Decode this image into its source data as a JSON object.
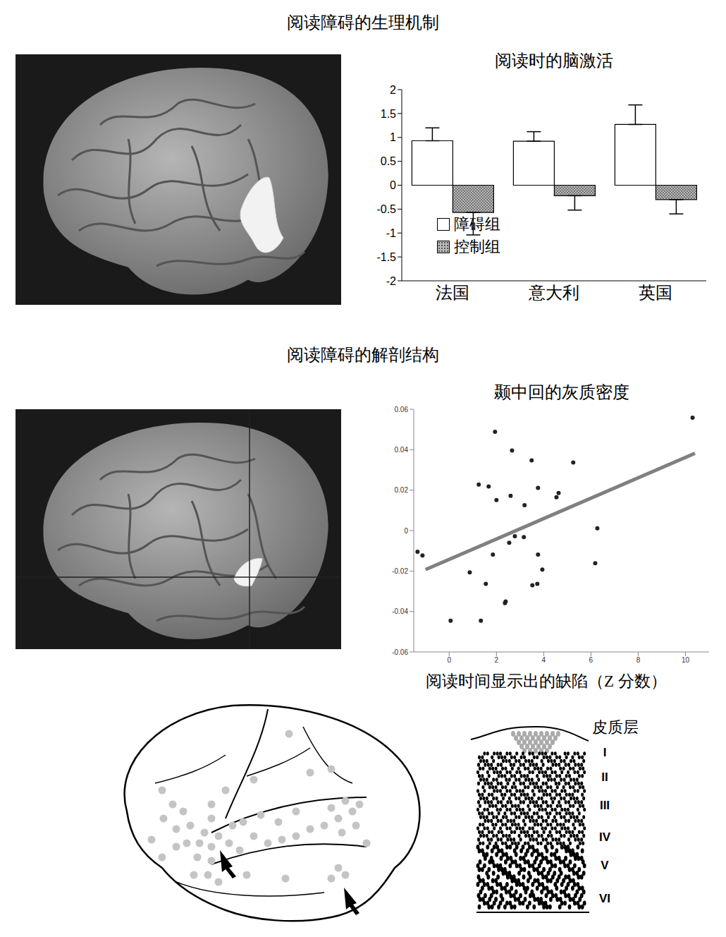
{
  "sections": [
    "阅读障碍的生理机制",
    "阅读障碍的解剖结构"
  ],
  "chart_data": [
    {
      "type": "bar",
      "title": "阅读时的脑激活",
      "categories": [
        "法国",
        "意大利",
        "英国"
      ],
      "series": [
        {
          "name": "障碍组",
          "color": "#ffffff",
          "values": [
            0.93,
            0.92,
            1.27
          ],
          "errors": [
            0.27,
            0.2,
            0.41
          ]
        },
        {
          "name": "控制组",
          "color": "#b8b8b8",
          "values": [
            -0.57,
            -0.22,
            -0.3
          ],
          "errors": [
            0.47,
            0.3,
            0.3
          ]
        }
      ],
      "ylim": [
        -2,
        2
      ],
      "yticks": [
        -2,
        -1.5,
        -1,
        -0.5,
        0,
        0.5,
        1,
        1.5,
        2
      ],
      "legend": "lower left",
      "grid": false
    },
    {
      "type": "scatter",
      "title": "颞中回的灰质密度",
      "xlabel": "阅读时间显示出的缺陷（Z 分数）",
      "x": [
        -1.34,
        -1.13,
        0.06,
        0.87,
        1.25,
        1.34,
        1.55,
        1.67,
        1.94,
        2.0,
        1.85,
        2.36,
        2.39,
        2.54,
        2.6,
        2.66,
        2.78,
        3.19,
        3.16,
        3.49,
        3.52,
        3.73,
        3.76,
        3.76,
        3.94,
        4.54,
        4.63,
        5.25,
        6.27,
        6.18,
        10.3
      ],
      "values": [
        -0.0105,
        -0.0123,
        -0.0446,
        -0.0207,
        0.0228,
        -0.0446,
        -0.0263,
        0.0218,
        0.0488,
        0.0151,
        -0.0119,
        -0.0358,
        -0.0351,
        -0.006,
        0.0172,
        0.0396,
        -0.0028,
        0.0126,
        -0.0032,
        0.0347,
        -0.027,
        -0.0263,
        0.0211,
        -0.0119,
        -0.0193,
        0.0165,
        0.0186,
        0.0337,
        0.0011,
        -0.0161,
        0.0558
      ],
      "color": "#222222",
      "fit": {
        "x": [
          -1.0,
          10.4
        ],
        "y": [
          -0.0193,
          0.0382
        ],
        "color": "#808080"
      },
      "xlim": [
        -1.5,
        11
      ],
      "xticks": [
        0,
        2,
        4,
        6,
        8,
        10
      ],
      "ylim": [
        -0.06,
        0.06
      ],
      "yticks": [
        -0.06,
        -0.04,
        -0.02,
        0,
        0.02,
        0.04,
        0.06
      ],
      "grid": false
    }
  ],
  "diagram": {
    "label": "皮质层",
    "layers": [
      "I",
      "II",
      "III",
      "IV",
      "V",
      "VI"
    ]
  }
}
